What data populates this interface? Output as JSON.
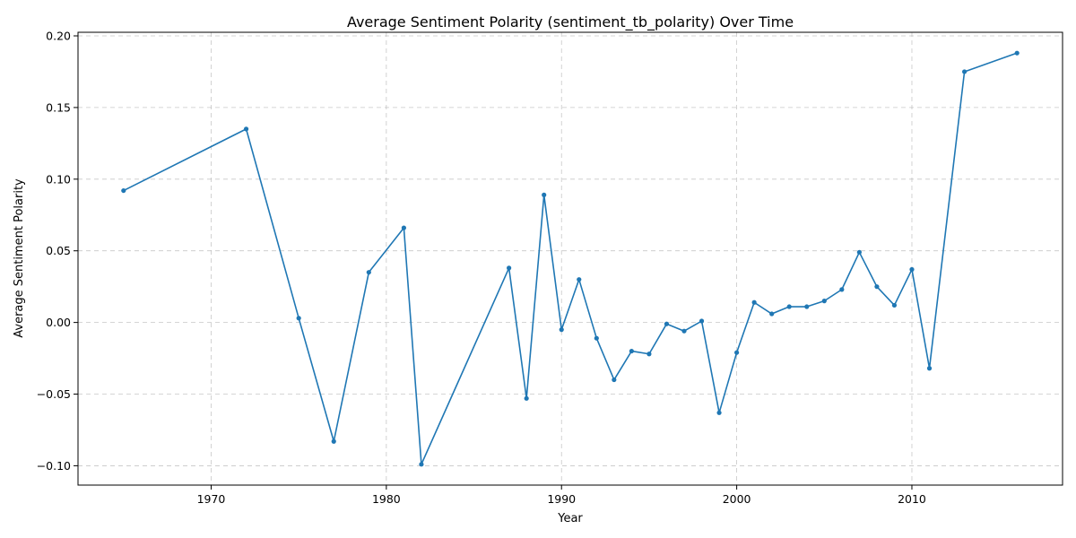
{
  "chart_data": {
    "type": "line",
    "title": "Average Sentiment Polarity (sentiment_tb_polarity) Over Time",
    "xlabel": "Year",
    "ylabel": "Average Sentiment Polarity",
    "xlim": [
      1962.4,
      2018.6
    ],
    "ylim": [
      -0.1135,
      0.2025
    ],
    "xticks": [
      1970,
      1980,
      1990,
      2000,
      2010
    ],
    "yticks": [
      -0.1,
      -0.05,
      0.0,
      0.05,
      0.1,
      0.15,
      0.2
    ],
    "ytick_labels": [
      "−0.10",
      "−0.05",
      "0.00",
      "0.05",
      "0.10",
      "0.15",
      "0.20"
    ],
    "grid": true,
    "color": "#1f77b4",
    "series": [
      {
        "x": [
          1965,
          1972,
          1975,
          1977,
          1979,
          1981,
          1982,
          1987,
          1988,
          1989,
          1990,
          1991,
          1992,
          1993,
          1994,
          1995,
          1996,
          1997,
          1998,
          1999,
          2000,
          2001,
          2002,
          2003,
          2004,
          2005,
          2006,
          2007,
          2008,
          2009,
          2010,
          2011,
          2013,
          2016
        ],
        "y": [
          0.092,
          0.135,
          0.003,
          -0.083,
          0.035,
          0.066,
          -0.099,
          0.038,
          -0.053,
          0.089,
          -0.005,
          0.03,
          -0.011,
          -0.04,
          -0.02,
          -0.022,
          -0.001,
          -0.006,
          0.001,
          -0.063,
          -0.021,
          0.014,
          0.006,
          0.011,
          0.011,
          0.015,
          0.023,
          0.049,
          0.025,
          0.012,
          0.037,
          -0.032,
          0.175,
          0.188
        ]
      }
    ]
  }
}
